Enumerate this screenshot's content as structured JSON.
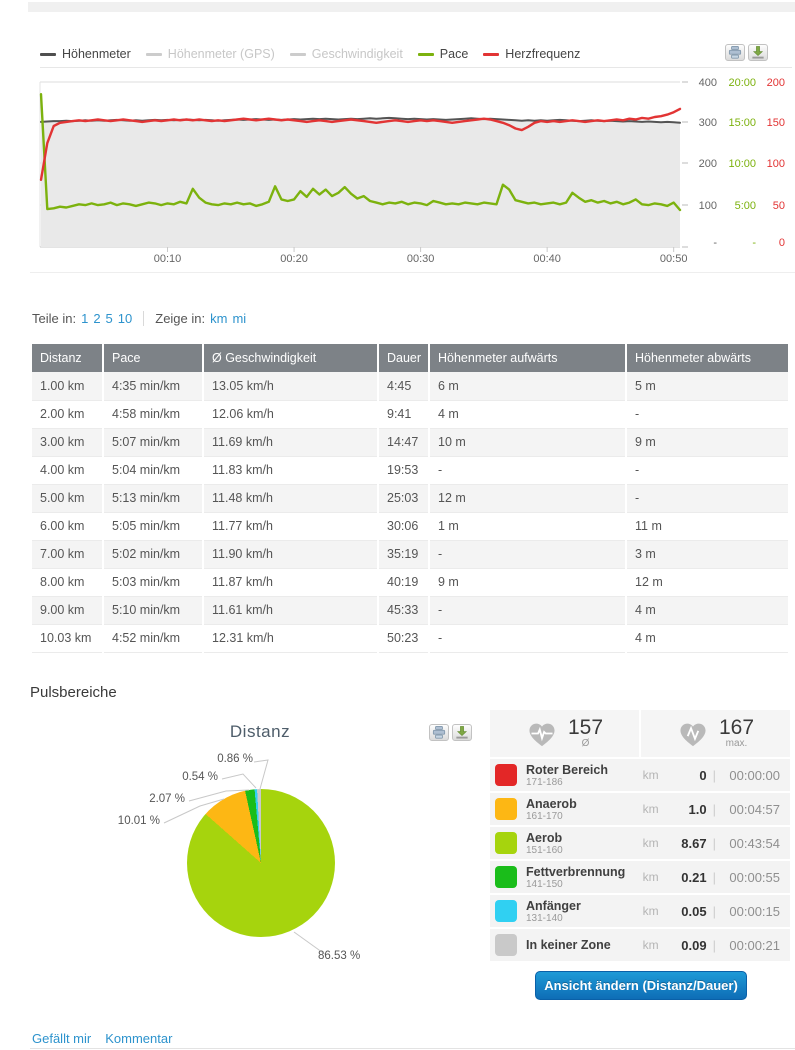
{
  "chart_data": [
    {
      "type": "line",
      "x_tick_labels": [
        "00:10",
        "00:20",
        "00:30",
        "00:40",
        "00:50"
      ],
      "x_tick_minutes": [
        10,
        20,
        30,
        40,
        50
      ],
      "duration_min": 50.5,
      "sample_step_min": 0.5,
      "grid": "horizontal",
      "y_axes": [
        {
          "name": "elevation",
          "color": "#666666",
          "max": 400,
          "labels": [
            "400",
            "300",
            "200",
            "100",
            "-"
          ]
        },
        {
          "name": "pace",
          "color": "#7cb20e",
          "max": 20,
          "labels": [
            "20:00",
            "15:00",
            "10:00",
            "5:00",
            "-"
          ]
        },
        {
          "name": "heartrate",
          "color": "#e23434",
          "max": 200,
          "labels": [
            "200",
            "150",
            "100",
            "50",
            "0"
          ]
        }
      ],
      "legend": [
        {
          "label": "Höhenmeter",
          "color": "#4f4f4f",
          "enabled": true
        },
        {
          "label": "Höhenmeter (GPS)",
          "color": "#cccccc",
          "enabled": false
        },
        {
          "label": "Geschwindigkeit",
          "color": "#cccccc",
          "enabled": false
        },
        {
          "label": "Pace",
          "color": "#7cb20e",
          "enabled": true
        },
        {
          "label": "Herzfrequenz",
          "color": "#e23434",
          "enabled": true
        }
      ],
      "series": [
        {
          "name": "Höhenmeter",
          "axis": "elevation",
          "color": "#545454",
          "fill": "#e9e9e9",
          "values": [
            302,
            303,
            304,
            304,
            305,
            304,
            305,
            306,
            305,
            306,
            305,
            306,
            307,
            306,
            305,
            306,
            305,
            306,
            307,
            306,
            307,
            306,
            307,
            308,
            307,
            306,
            307,
            306,
            305,
            306,
            307,
            308,
            307,
            308,
            309,
            308,
            307,
            308,
            307,
            308,
            309,
            308,
            309,
            310,
            309,
            310,
            309,
            308,
            309,
            310,
            309,
            310,
            311,
            310,
            311,
            312,
            311,
            310,
            309,
            310,
            309,
            308,
            309,
            308,
            307,
            308,
            309,
            310,
            311,
            310,
            309,
            310,
            309,
            308,
            307,
            306,
            305,
            306,
            305,
            306,
            305,
            306,
            307,
            306,
            305,
            304,
            305,
            306,
            305,
            304,
            305,
            304,
            303,
            304,
            303,
            302,
            303,
            302,
            301,
            302,
            301,
            300
          ]
        },
        {
          "name": "Pace",
          "axis": "pace",
          "color": "#7cb20e",
          "values": [
            18.5,
            4.4,
            4.5,
            4.7,
            4.6,
            4.8,
            5.0,
            4.9,
            5.1,
            4.9,
            5.0,
            5.2,
            4.9,
            5.1,
            5.0,
            4.8,
            5.0,
            5.2,
            5.1,
            4.9,
            5.1,
            5.0,
            5.3,
            5.1,
            6.9,
            5.8,
            5.2,
            5.0,
            4.9,
            5.1,
            5.0,
            5.2,
            5.0,
            5.1,
            4.8,
            5.0,
            5.3,
            7.2,
            5.6,
            5.4,
            5.6,
            6.6,
            5.9,
            6.9,
            6.2,
            6.8,
            6.0,
            6.4,
            7.1,
            6.3,
            5.7,
            6.0,
            5.4,
            5.2,
            5.0,
            5.2,
            5.1,
            5.3,
            5.0,
            5.2,
            5.1,
            4.9,
            5.4,
            5.2,
            5.0,
            5.1,
            5.0,
            5.2,
            5.1,
            5.0,
            5.2,
            5.1,
            5.0,
            7.4,
            6.8,
            5.5,
            5.3,
            5.1,
            5.2,
            5.0,
            5.1,
            5.2,
            5.0,
            5.2,
            6.4,
            5.8,
            5.3,
            5.5,
            5.2,
            5.4,
            5.1,
            5.3,
            5.0,
            5.2,
            5.6,
            5.0,
            4.9,
            5.1,
            5.0,
            4.8,
            5.2,
            4.3
          ]
        },
        {
          "name": "Herzfrequenz",
          "axis": "heartrate",
          "color": "#e23434",
          "values": [
            80,
            125,
            146,
            150,
            151,
            152,
            153,
            152,
            153,
            154,
            153,
            152,
            153,
            154,
            153,
            152,
            151,
            152,
            153,
            152,
            153,
            154,
            153,
            154,
            153,
            154,
            153,
            152,
            153,
            152,
            153,
            154,
            155,
            154,
            153,
            154,
            155,
            154,
            153,
            154,
            153,
            152,
            151,
            152,
            153,
            152,
            151,
            152,
            153,
            154,
            153,
            152,
            151,
            150,
            151,
            152,
            153,
            152,
            151,
            152,
            153,
            152,
            153,
            152,
            151,
            150,
            151,
            152,
            153,
            154,
            155,
            154,
            152,
            150,
            147,
            143,
            141,
            145,
            150,
            152,
            151,
            152,
            151,
            152,
            153,
            152,
            151,
            152,
            153,
            152,
            153,
            154,
            153,
            155,
            154,
            156,
            155,
            157,
            158,
            160,
            163,
            167
          ]
        }
      ]
    },
    {
      "type": "pie",
      "title": "Distanz",
      "slices": [
        {
          "label": "Aerob",
          "value_km": 8.67,
          "pct": 86.53,
          "pct_label": "86.53 %",
          "color": "#a6d40d"
        },
        {
          "label": "Anaerob",
          "value_km": 1.0,
          "pct": 10.01,
          "pct_label": "10.01 %",
          "color": "#fdb714"
        },
        {
          "label": "Fettverbrennung",
          "value_km": 0.21,
          "pct": 2.07,
          "pct_label": "2.07 %",
          "color": "#1abd1a"
        },
        {
          "label": "Anfänger",
          "value_km": 0.05,
          "pct": 0.54,
          "pct_label": "0.54 %",
          "color": "#30d0f2"
        },
        {
          "label": "In keiner Zone",
          "value_km": 0.09,
          "pct": 0.86,
          "pct_label": "0.86 %",
          "color": "#c9c9c9"
        }
      ]
    }
  ],
  "splits": {
    "teile_label": "Teile in:",
    "teile_options": [
      "1",
      "2",
      "5",
      "10"
    ],
    "zeige_label": "Zeige in:",
    "zeige_options": [
      "km",
      "mi"
    ]
  },
  "table": {
    "headers": [
      "Distanz",
      "Pace",
      "Ø Geschwindigkeit",
      "Dauer",
      "Höhenmeter aufwärts",
      "Höhenmeter abwärts"
    ],
    "rows": [
      [
        "1.00 km",
        "4:35 min/km",
        "13.05 km/h",
        "4:45",
        "6 m",
        "5 m"
      ],
      [
        "2.00 km",
        "4:58 min/km",
        "12.06 km/h",
        "9:41",
        "4 m",
        "-"
      ],
      [
        "3.00 km",
        "5:07 min/km",
        "11.69 km/h",
        "14:47",
        "10 m",
        "9 m"
      ],
      [
        "4.00 km",
        "5:04 min/km",
        "11.83 km/h",
        "19:53",
        "-",
        "-"
      ],
      [
        "5.00 km",
        "5:13 min/km",
        "11.48 km/h",
        "25:03",
        "12 m",
        "-"
      ],
      [
        "6.00 km",
        "5:05 min/km",
        "11.77 km/h",
        "30:06",
        "1 m",
        "11 m"
      ],
      [
        "7.00 km",
        "5:02 min/km",
        "11.90 km/h",
        "35:19",
        "-",
        "3 m"
      ],
      [
        "8.00 km",
        "5:03 min/km",
        "11.87 km/h",
        "40:19",
        "9 m",
        "12 m"
      ],
      [
        "9.00 km",
        "5:10 min/km",
        "11.61 km/h",
        "45:33",
        "-",
        "4 m"
      ],
      [
        "10.03 km",
        "4:52 min/km",
        "12.31 km/h",
        "50:23",
        "-",
        "4 m"
      ]
    ]
  },
  "pulse": {
    "heading": "Pulsbereiche",
    "avg": {
      "value": "157",
      "label": "Ø"
    },
    "max": {
      "value": "167",
      "label": "max."
    },
    "zones": [
      {
        "name": "Roter Bereich",
        "range": "171-186",
        "unit": "km",
        "value": "0",
        "time": "00:00:00",
        "color": "#e32727"
      },
      {
        "name": "Anaerob",
        "range": "161-170",
        "unit": "km",
        "value": "1.0",
        "time": "00:04:57",
        "color": "#fdb714"
      },
      {
        "name": "Aerob",
        "range": "151-160",
        "unit": "km",
        "value": "8.67",
        "time": "00:43:54",
        "color": "#a6d40d"
      },
      {
        "name": "Fettverbrennung",
        "range": "141-150",
        "unit": "km",
        "value": "0.21",
        "time": "00:00:55",
        "color": "#1abd1a"
      },
      {
        "name": "Anfänger",
        "range": "131-140",
        "unit": "km",
        "value": "0.05",
        "time": "00:00:15",
        "color": "#30d0f2"
      },
      {
        "name": "In keiner Zone",
        "range": "",
        "unit": "km",
        "value": "0.09",
        "time": "00:00:21",
        "color": "#c9c9c9"
      }
    ],
    "button_label": "Ansicht ändern (Distanz/Dauer)"
  },
  "footer": {
    "like": "Gefällt mir",
    "comment": "Kommentar"
  }
}
